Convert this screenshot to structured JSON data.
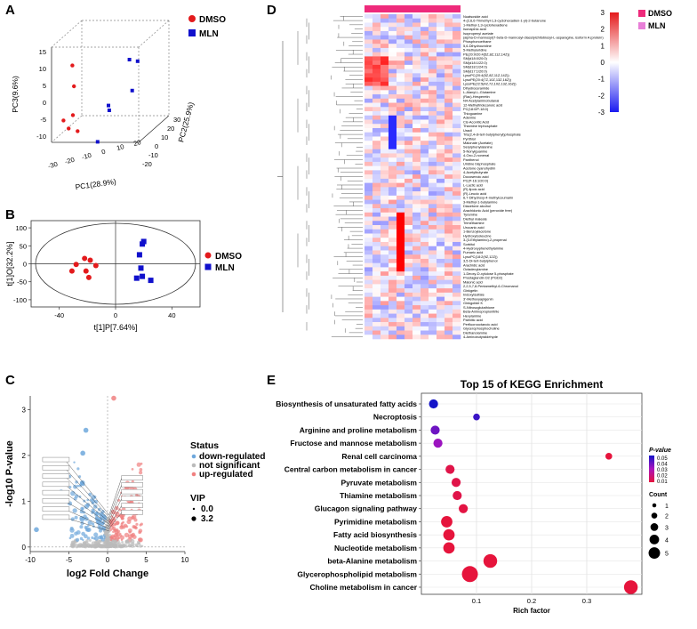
{
  "panels": {
    "a": "A",
    "b": "B",
    "c": "C",
    "d": "D",
    "e": "E"
  },
  "chart_data": [
    {
      "panel": "A",
      "type": "scatter",
      "title": "",
      "axes": {
        "pc1_label": "PC1(28.9%)",
        "pc2_label": "PC2(25.9%)",
        "pc3_label": "PC3(9.6%)",
        "pc1_ticks": [
          "-30",
          "-20",
          "-10",
          "0",
          "10",
          "20"
        ],
        "pc2_ticks": [
          "-20",
          "-10",
          "0",
          "10",
          "20",
          "30"
        ],
        "pc3_ticks": [
          "-10",
          "-5",
          "0",
          "5",
          "10",
          "15"
        ]
      },
      "legend": [
        {
          "name": "DMSO",
          "color": "#e31a1c"
        },
        {
          "name": "MLN",
          "color": "#1010cc"
        }
      ],
      "points": [
        {
          "group": "DMSO",
          "pc1": -14,
          "pc2": 4,
          "pc3": 8
        },
        {
          "group": "DMSO",
          "pc1": -12,
          "pc2": 2,
          "pc3": 3
        },
        {
          "group": "DMSO",
          "pc1": -9,
          "pc2": -4,
          "pc3": -3
        },
        {
          "group": "DMSO",
          "pc1": -10,
          "pc2": -6,
          "pc3": -6
        },
        {
          "group": "DMSO",
          "pc1": -15,
          "pc2": -2,
          "pc3": -5
        },
        {
          "group": "DMSO",
          "pc1": -6,
          "pc2": -5,
          "pc3": -7
        },
        {
          "group": "MLN",
          "pc1": 14,
          "pc2": 6,
          "pc3": 9
        },
        {
          "group": "MLN",
          "pc1": 17,
          "pc2": 8,
          "pc3": 8
        },
        {
          "group": "MLN",
          "pc1": 16,
          "pc2": 5,
          "pc3": 1
        },
        {
          "group": "MLN",
          "pc1": 8,
          "pc2": -2,
          "pc3": -1
        },
        {
          "group": "MLN",
          "pc1": 9,
          "pc2": -3,
          "pc3": -2
        },
        {
          "group": "MLN",
          "pc1": 6,
          "pc2": -8,
          "pc3": -9
        }
      ]
    },
    {
      "panel": "B",
      "type": "scatter",
      "xlabel": "t[1]P[7.64%]",
      "ylabel": "t[1]O[32.2%]",
      "xlim": [
        -60,
        60
      ],
      "ylim": [
        -120,
        120
      ],
      "xticks": [
        -40,
        0,
        40
      ],
      "yticks": [
        -100,
        -50,
        0,
        50,
        100
      ],
      "legend": [
        {
          "name": "DMSO",
          "color": "#e31a1c"
        },
        {
          "name": "MLN",
          "color": "#1010cc"
        }
      ],
      "points": [
        {
          "group": "DMSO",
          "x": -22,
          "y": 15
        },
        {
          "group": "DMSO",
          "x": -18,
          "y": 10
        },
        {
          "group": "DMSO",
          "x": -28,
          "y": -2
        },
        {
          "group": "DMSO",
          "x": -14,
          "y": -5
        },
        {
          "group": "DMSO",
          "x": -21,
          "y": -20
        },
        {
          "group": "DMSO",
          "x": -31,
          "y": -20
        },
        {
          "group": "DMSO",
          "x": -19,
          "y": -38
        },
        {
          "group": "MLN",
          "x": 20,
          "y": 62
        },
        {
          "group": "MLN",
          "x": 19,
          "y": 55
        },
        {
          "group": "MLN",
          "x": 17,
          "y": 25
        },
        {
          "group": "MLN",
          "x": 18,
          "y": -12
        },
        {
          "group": "MLN",
          "x": 19,
          "y": -35
        },
        {
          "group": "MLN",
          "x": 15,
          "y": -40
        },
        {
          "group": "MLN",
          "x": 25,
          "y": -46
        }
      ]
    },
    {
      "panel": "C",
      "type": "scatter",
      "xlabel": "log2 Fold Change",
      "ylabel": "-log10 P-value",
      "xlim": [
        -10,
        10
      ],
      "ylim": [
        -0.1,
        3.3
      ],
      "xticks": [
        -10,
        -5,
        0,
        5,
        10
      ],
      "yticks": [
        0,
        1,
        2,
        3
      ],
      "legend_title": "Status",
      "legend": [
        {
          "name": "down-regulated",
          "color": "#6fa8dc"
        },
        {
          "name": "not significant",
          "color": "#bbbbbb"
        },
        {
          "name": "up-regulated",
          "color": "#f08080"
        }
      ],
      "vip_title": "VIP",
      "vip_levels": [
        "0.0",
        "3.2"
      ],
      "highlight": [
        {
          "group": "up",
          "x": 0.8,
          "y": 3.25
        },
        {
          "group": "down",
          "x": -2.8,
          "y": 2.55
        },
        {
          "group": "down",
          "x": -3.2,
          "y": 2.05
        },
        {
          "group": "down",
          "x": -9.2,
          "y": 0.38
        },
        {
          "group": "up",
          "x": 2.5,
          "y": 1.3
        },
        {
          "group": "up",
          "x": 3.1,
          "y": 0.95
        },
        {
          "group": "down",
          "x": -5.2,
          "y": 1.55
        },
        {
          "group": "down",
          "x": -6.0,
          "y": 1.2
        }
      ]
    },
    {
      "panel": "D",
      "type": "heatmap",
      "legend": [
        {
          "name": "DMSO",
          "color": "#ee2a7b"
        },
        {
          "name": "MLN",
          "color": "#e87fd8"
        }
      ],
      "scale_ticks": [
        "3",
        "2",
        "1",
        "0",
        "-1",
        "-2",
        "-3"
      ],
      "columns": 12,
      "rows": [
        "Nuatsoside acid",
        "4-(2,6,6-Trimethyl-1,3-cyclohexadien-1-yl)-2-butanone",
        "1-Methyl-1,3-cyclohexadiene",
        "Isonapinic acid",
        "Isopropenyl acetate",
        "(alpha-D-mannosyl)7-beta-D-mannosyl-diacetylchitobiosyl-L-asparagine, isoform A (protein)",
        "Phosphonoethane",
        "5,6-Dihydrouridine",
        "5-Methyluridine",
        "PE(20:0/20:4(5Z,8Z,11Z,14Z))",
        "SM(d18:0/20:0)",
        "SM(d18:1/22:0)",
        "SM(d18:1/24:0)",
        "SM(d17:1/20:0)",
        "LysoPC(20:4(5Z,8Z,11Z,14Z))",
        "LysoPE(20:4(7Z,10Z,13Z,16Z))",
        "LysoPE(22:5(4Z,7Z,10Z,13Z,16Z))",
        "Dihydroceramide",
        "L-Alanyl-L-Glutamine",
        "(Rac)-Hesperetin",
        "N4-Acetylaminobutanal",
        "12-Methyltridecanoic acid",
        "PC(18:0/P-18:0)",
        "Thioguanine",
        "Adenine",
        "Cis-Aconitic Acid",
        "Thiamine triphosphate",
        "Uracil",
        "Tris(2,4-di-tert-butylphenyl)phosphate",
        "Pyrithiol",
        "Malonate (Acetate)",
        "Serylphenylalanine",
        "5-Nonylguanine",
        "4-Oxo-2-nonenal",
        "Panthenol",
        "Uridine bisphosphate",
        "Acetone cyanohydrin",
        "4-Acetylbutyrate",
        "Docosenoic acid",
        "PC(P-16:1/20:0)",
        "L-Lactic acid",
        "(R)-lipoic acid",
        "(R)-Leucic acid",
        "6,7-Dihydroxy-4-methylcoumarin",
        "3-Methyl-1-butylamine",
        "Diacetone alcohol",
        "Arachidonic Acid (peroxide free)",
        "Tyramine",
        "Diethyl maleate",
        "Trimethamine",
        "Urocanic acid",
        "1-Benzoylacetone",
        "Hydroxyisoleucine",
        "3-(3-Ethylamino)-2-propenal",
        "Sorbitol",
        "4-Hydroxyphenethylamine",
        "Fumaric acid",
        "LysoPC(18:2(9Z,12Z))",
        "3,5-Di-tert-butylphenol",
        "Arachidic acid",
        "Octadecylamine",
        "1-Deoxy-D-xylulose 5-phosphate",
        "Prostaglandin D2 (PGD2)",
        "Malonic acid",
        "2,2,5,7,8-Pentamethyl-6-Chromanol",
        "Ginkgetin",
        "Indoxylsulfate",
        "3'-Methoxyapigenin",
        "Ginkgolide K",
        "S-Nitrosoglutathione",
        "Beta-Aminopropionitrile",
        "Hexylamine",
        "Palmitic acid",
        "Perfluorooctanoic acid",
        "Glycerophosphocholine",
        "Diethanolamine",
        "4-Aminobutyraldehyde"
      ]
    },
    {
      "panel": "E",
      "type": "scatter",
      "title": "Top 15 of KEGG Enrichment",
      "xlabel": "Rich factor",
      "xlim": [
        0.0,
        0.4
      ],
      "xticks": [
        0.1,
        0.2,
        0.3
      ],
      "pvalue_title": "P-value",
      "pvalue_ticks": [
        "0.05",
        "0.04",
        "0.03",
        "0.02",
        "0.01"
      ],
      "count_title": "Count",
      "count_levels": [
        1,
        2,
        3,
        4,
        5
      ],
      "pathways": [
        {
          "name": "Biosynthesis of unsaturated fatty acids",
          "rich": 0.022,
          "count": 2,
          "p": 0.05
        },
        {
          "name": "Necroptosis",
          "rich": 0.1,
          "count": 1,
          "p": 0.045
        },
        {
          "name": "Arginine and proline metabolism",
          "rich": 0.025,
          "count": 2,
          "p": 0.038
        },
        {
          "name": "Fructose and mannose metabolism",
          "rich": 0.03,
          "count": 2,
          "p": 0.032
        },
        {
          "name": "Renal cell carcinoma",
          "rich": 0.34,
          "count": 1,
          "p": 0.01
        },
        {
          "name": "Central carbon metabolism in cancer",
          "rich": 0.052,
          "count": 2,
          "p": 0.012
        },
        {
          "name": "Pyruvate metabolism",
          "rich": 0.063,
          "count": 2,
          "p": 0.012
        },
        {
          "name": "Thiamine metabolism",
          "rich": 0.065,
          "count": 2,
          "p": 0.012
        },
        {
          "name": "Glucagon signaling pathway",
          "rich": 0.076,
          "count": 2,
          "p": 0.011
        },
        {
          "name": "Pyrimidine metabolism",
          "rich": 0.046,
          "count": 3,
          "p": 0.01
        },
        {
          "name": "Fatty acid biosynthesis",
          "rich": 0.05,
          "count": 3,
          "p": 0.01
        },
        {
          "name": "Nucleotide metabolism",
          "rich": 0.05,
          "count": 3,
          "p": 0.01
        },
        {
          "name": "beta-Alanine metabolism",
          "rich": 0.125,
          "count": 4,
          "p": 0.01
        },
        {
          "name": "Glycerophospholipid metabolism",
          "rich": 0.088,
          "count": 5,
          "p": 0.01
        },
        {
          "name": "Choline metabolism in cancer",
          "rich": 0.38,
          "count": 4,
          "p": 0.01
        }
      ]
    }
  ]
}
